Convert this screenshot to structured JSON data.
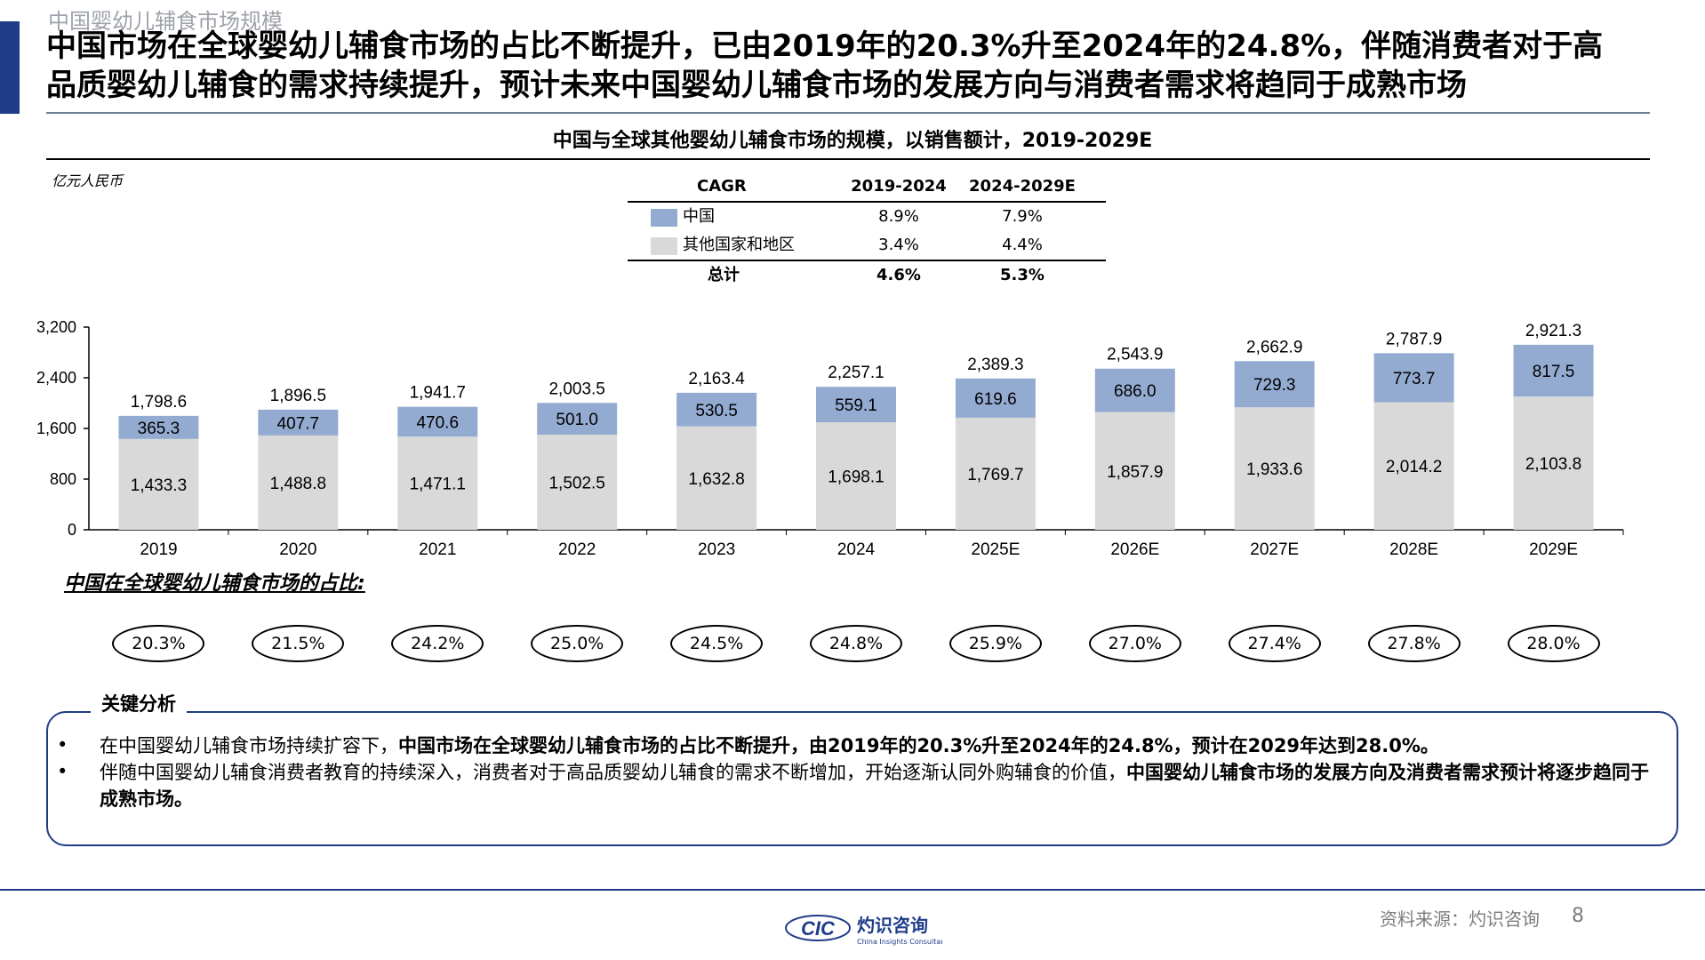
{
  "header": {
    "section_label": "中国婴幼儿辅食市场规模",
    "headline_line1": "中国市场在全球婴幼儿辅食市场的占比不断提升，已由2019年的20.3%升至2024年的24.8%，伴随消费者对于高",
    "headline_line2": "品质婴幼儿辅食的需求持续提升，预计未来中国婴幼儿辅食市场的发展方向与消费者需求将趋同于成熟市场"
  },
  "colors": {
    "china": "#94abd1",
    "others": "#d9d9d9",
    "accent": "#1f3c88"
  },
  "cagr_table": {
    "header": [
      "CAGR",
      "2019-2024",
      "2024-2029E"
    ],
    "rows": [
      {
        "label": "中国",
        "v1": "8.9%",
        "v2": "7.9%"
      },
      {
        "label": "其他国家和地区",
        "v1": "3.4%",
        "v2": "4.4%"
      }
    ],
    "total": {
      "label": "总计",
      "v1": "4.6%",
      "v2": "5.3%"
    }
  },
  "chart_data": {
    "type": "bar",
    "stacked": true,
    "title": "中国与全球其他婴幼儿辅食市场的规模，以销售额计，2019-2029E",
    "unit": "亿元人民币",
    "categories": [
      "2019",
      "2020",
      "2021",
      "2022",
      "2023",
      "2024",
      "2025E",
      "2026E",
      "2027E",
      "2028E",
      "2029E"
    ],
    "series": [
      {
        "name": "其他国家和地区",
        "values": [
          1433.3,
          1488.8,
          1471.1,
          1502.5,
          1632.8,
          1698.1,
          1769.7,
          1857.9,
          1933.6,
          2014.2,
          2103.8
        ],
        "labels": [
          "1,433.3",
          "1,488.8",
          "1,471.1",
          "1,502.5",
          "1,632.8",
          "1,698.1",
          "1,769.7",
          "1,857.9",
          "1,933.6",
          "2,014.2",
          "2,103.8"
        ]
      },
      {
        "name": "中国",
        "values": [
          365.3,
          407.7,
          470.6,
          501.0,
          530.5,
          559.1,
          619.6,
          686.0,
          729.3,
          773.7,
          817.5
        ],
        "labels": [
          "365.3",
          "407.7",
          "470.6",
          "501.0",
          "530.5",
          "559.1",
          "619.6",
          "686.0",
          "729.3",
          "773.7",
          "817.5"
        ]
      }
    ],
    "totals": [
      1798.6,
      1896.5,
      1941.7,
      2003.5,
      2163.4,
      2257.1,
      2389.3,
      2543.9,
      2662.9,
      2787.9,
      2921.3
    ],
    "total_labels": [
      "1,798.6",
      "1,896.5",
      "1,941.7",
      "2,003.5",
      "2,163.4",
      "2,257.1",
      "2,389.3",
      "2,543.9",
      "2,662.9",
      "2,787.9",
      "2,921.3"
    ],
    "yticks": [
      "0",
      "800",
      "1,600",
      "2,400",
      "3,200"
    ],
    "ytick_values": [
      0,
      800,
      1600,
      2400,
      3200
    ],
    "ylim": [
      0,
      3200
    ],
    "china_share_title": "中国在全球婴幼儿辅食市场的占比:",
    "china_share": [
      "20.3%",
      "21.5%",
      "24.2%",
      "25.0%",
      "24.5%",
      "24.8%",
      "25.9%",
      "27.0%",
      "27.4%",
      "27.8%",
      "28.0%"
    ]
  },
  "analysis": {
    "title": "关键分析",
    "b1_normal": "在中国婴幼儿辅食市场持续扩容下，",
    "b1_bold": "中国市场在全球婴幼儿辅食市场的占比不断提升，由2019年的20.3%升至2024年的24.8%，预计在2029年达到28.0%。",
    "b2_normal": "伴随中国婴幼儿辅食消费者教育的持续深入，消费者对于高品质婴幼儿辅食的需求不断增加，开始逐渐认同外购辅食的价值，",
    "b2_bold": "中国婴幼儿辅食市场的发展方向及消费者需求预计将逐步趋同于成熟市场。"
  },
  "footer": {
    "source": "资料来源：灼识咨询",
    "page": "8",
    "logo_abbr": "CIC",
    "logo_cn": "灼识咨询",
    "logo_en": "China Insights Consultancy"
  }
}
